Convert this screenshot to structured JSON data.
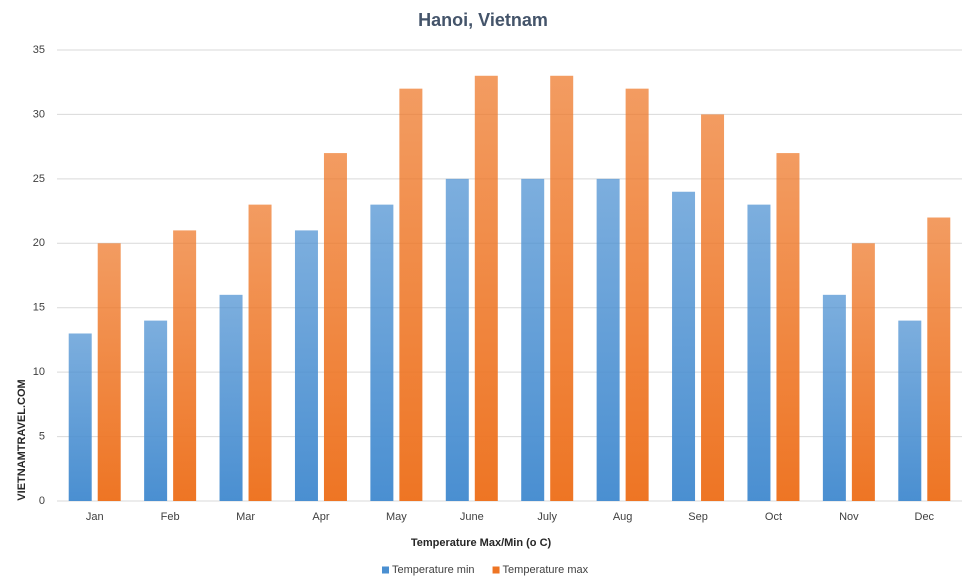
{
  "chart_data": {
    "type": "bar",
    "title": "Hanoi, Vietnam",
    "x_axis_label": "Temperature Max/Min (o C)",
    "y_axis_label": "VIETNAMTRAVEL.COM",
    "categories": [
      "Jan",
      "Feb",
      "Mar",
      "Apr",
      "May",
      "June",
      "July",
      "Aug",
      "Sep",
      "Oct",
      "Nov",
      "Dec"
    ],
    "series": [
      {
        "name": "Temperature min",
        "color": "#4a8fd1",
        "values": [
          13,
          14,
          16,
          21,
          23,
          25,
          25,
          25,
          24,
          23,
          16,
          14
        ]
      },
      {
        "name": "Temperature max",
        "color": "#ee7524",
        "values": [
          20,
          21,
          23,
          27,
          32,
          33,
          33,
          32,
          30,
          27,
          20,
          22
        ]
      }
    ],
    "ylim": [
      0,
      35
    ],
    "yticks": [
      0,
      5,
      10,
      15,
      20,
      25,
      30,
      35
    ],
    "grid": true,
    "legend": "bottom"
  }
}
